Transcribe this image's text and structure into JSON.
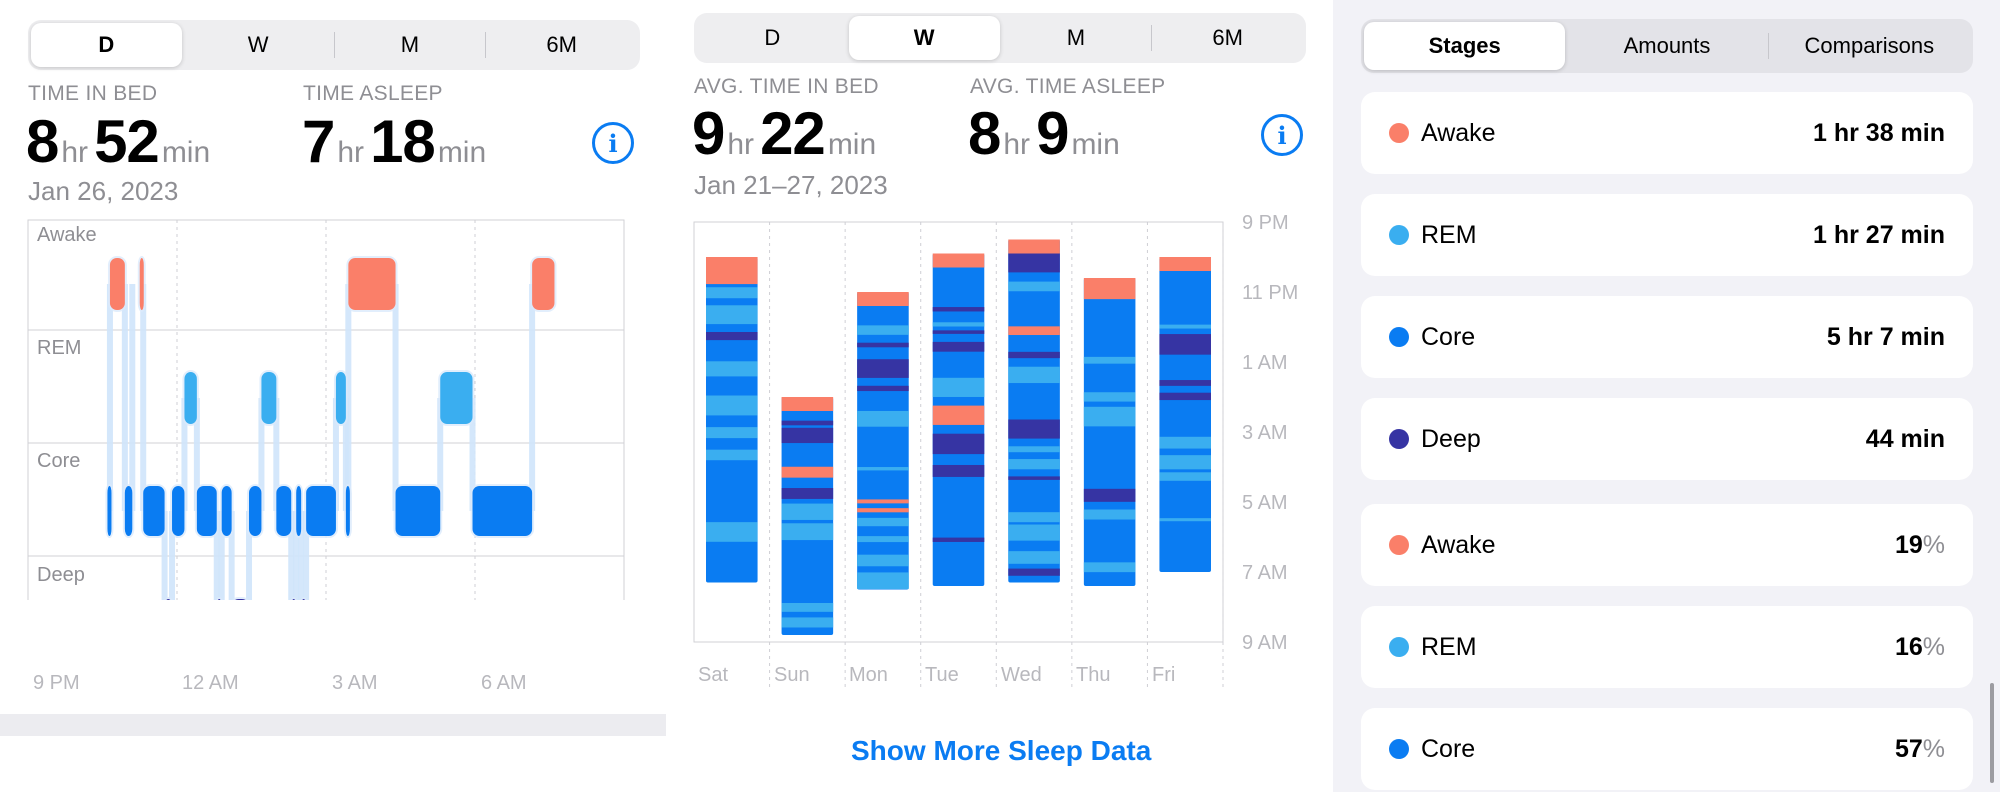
{
  "colors": {
    "awake": "#fa7f69",
    "rem": "#3aaef0",
    "core": "#0a7cf2",
    "deep": "#3634a3",
    "accent": "#0a7cf2"
  },
  "day_view": {
    "tabs": [
      "D",
      "W",
      "M",
      "6M"
    ],
    "selected_tab": "D",
    "time_in_bed": {
      "label": "TIME IN BED",
      "hours": "8",
      "minutes": "52",
      "hr_unit": "hr",
      "min_unit": "min"
    },
    "time_asleep": {
      "label": "TIME ASLEEP",
      "hours": "7",
      "minutes": "18",
      "hr_unit": "hr",
      "min_unit": "min"
    },
    "date": "Jan 26, 2023",
    "stage_labels": [
      "Awake",
      "REM",
      "Core",
      "Deep"
    ],
    "time_axis": [
      "9 PM",
      "12 AM",
      "3 AM",
      "6 AM"
    ]
  },
  "week_view": {
    "tabs": [
      "D",
      "W",
      "M",
      "6M"
    ],
    "selected_tab": "W",
    "avg_time_in_bed": {
      "label": "AVG. TIME IN BED",
      "hours": "9",
      "minutes": "22",
      "hr_unit": "hr",
      "min_unit": "min"
    },
    "avg_time_asleep": {
      "label": "AVG. TIME ASLEEP",
      "hours": "8",
      "minutes": "9",
      "hr_unit": "hr",
      "min_unit": "min"
    },
    "date_range": "Jan 21–27, 2023",
    "time_axis": [
      "9 PM",
      "11 PM",
      "1 AM",
      "3 AM",
      "5 AM",
      "7 AM",
      "9 AM"
    ],
    "days": [
      "Sat",
      "Sun",
      "Mon",
      "Tue",
      "Wed",
      "Thu",
      "Fri"
    ],
    "show_more": "Show More Sleep Data"
  },
  "summary": {
    "tabs": [
      "Stages",
      "Amounts",
      "Comparisons"
    ],
    "selected_tab": "Stages",
    "durations": [
      {
        "stage": "Awake",
        "value": "1 hr 38 min",
        "color": "#fa7f69"
      },
      {
        "stage": "REM",
        "value": "1 hr 27 min",
        "color": "#3aaef0"
      },
      {
        "stage": "Core",
        "value": "5 hr 7 min",
        "color": "#0a7cf2"
      },
      {
        "stage": "Deep",
        "value": "44 min",
        "color": "#3634a3"
      }
    ],
    "percentages": [
      {
        "stage": "Awake",
        "value": "19",
        "unit": "%",
        "color": "#fa7f69"
      },
      {
        "stage": "REM",
        "value": "16",
        "unit": "%",
        "color": "#3aaef0"
      },
      {
        "stage": "Core",
        "value": "57",
        "unit": "%",
        "color": "#0a7cf2"
      }
    ]
  },
  "chart_data": [
    {
      "type": "hypnogram",
      "x_axis_ticks": [
        "9 PM",
        "12 AM",
        "3 AM",
        "6 AM"
      ],
      "x_range_hours": [
        21,
        33
      ],
      "stages": [
        "Awake",
        "REM",
        "Core",
        "Deep"
      ],
      "segments": [
        {
          "stage": "Core",
          "start": 22.6,
          "end": 22.65
        },
        {
          "stage": "Awake",
          "start": 22.65,
          "end": 22.95
        },
        {
          "stage": "Core",
          "start": 22.95,
          "end": 23.1
        },
        {
          "stage": "Awake",
          "start": 23.25,
          "end": 23.32
        },
        {
          "stage": "Core",
          "start": 23.32,
          "end": 23.75
        },
        {
          "stage": "Deep",
          "start": 23.75,
          "end": 23.9
        },
        {
          "stage": "Core",
          "start": 23.9,
          "end": 24.15
        },
        {
          "stage": "REM",
          "start": 24.15,
          "end": 24.4
        },
        {
          "stage": "Core",
          "start": 24.4,
          "end": 24.8
        },
        {
          "stage": "Deep",
          "start": 24.8,
          "end": 24.9
        },
        {
          "stage": "Core",
          "start": 24.9,
          "end": 25.1
        },
        {
          "stage": "Deep",
          "start": 25.1,
          "end": 25.45
        },
        {
          "stage": "Core",
          "start": 25.45,
          "end": 25.7
        },
        {
          "stage": "REM",
          "start": 25.7,
          "end": 26.0
        },
        {
          "stage": "Core",
          "start": 26.0,
          "end": 26.3
        },
        {
          "stage": "Deep",
          "start": 26.3,
          "end": 26.4
        },
        {
          "stage": "Core",
          "start": 26.4,
          "end": 26.5
        },
        {
          "stage": "Deep",
          "start": 26.5,
          "end": 26.6
        },
        {
          "stage": "Core",
          "start": 26.6,
          "end": 27.2
        },
        {
          "stage": "REM",
          "start": 27.2,
          "end": 27.4
        },
        {
          "stage": "Core",
          "start": 27.4,
          "end": 27.45
        },
        {
          "stage": "Awake",
          "start": 27.45,
          "end": 28.4
        },
        {
          "stage": "Core",
          "start": 28.4,
          "end": 29.3
        },
        {
          "stage": "REM",
          "start": 29.3,
          "end": 29.95
        },
        {
          "stage": "Core",
          "start": 29.95,
          "end": 31.15
        },
        {
          "stage": "Awake",
          "start": 31.15,
          "end": 31.6
        }
      ]
    },
    {
      "type": "stacked_range_bar",
      "categories": [
        "Sat",
        "Sun",
        "Mon",
        "Tue",
        "Wed",
        "Thu",
        "Fri"
      ],
      "y_axis_ticks": [
        "9 PM",
        "11 PM",
        "1 AM",
        "3 AM",
        "5 AM",
        "7 AM",
        "9 AM"
      ],
      "y_range_hours": [
        21,
        33
      ],
      "bars": [
        {
          "day": "Sat",
          "start": 22.0,
          "end": 31.3
        },
        {
          "day": "Sun",
          "start": 26.0,
          "end": 32.8
        },
        {
          "day": "Mon",
          "start": 23.0,
          "end": 31.5
        },
        {
          "day": "Tue",
          "start": 21.9,
          "end": 31.4
        },
        {
          "day": "Wed",
          "start": 21.5,
          "end": 31.3
        },
        {
          "day": "Thu",
          "start": 22.6,
          "end": 31.4
        },
        {
          "day": "Fri",
          "start": 22.0,
          "end": 31.0
        }
      ]
    }
  ]
}
